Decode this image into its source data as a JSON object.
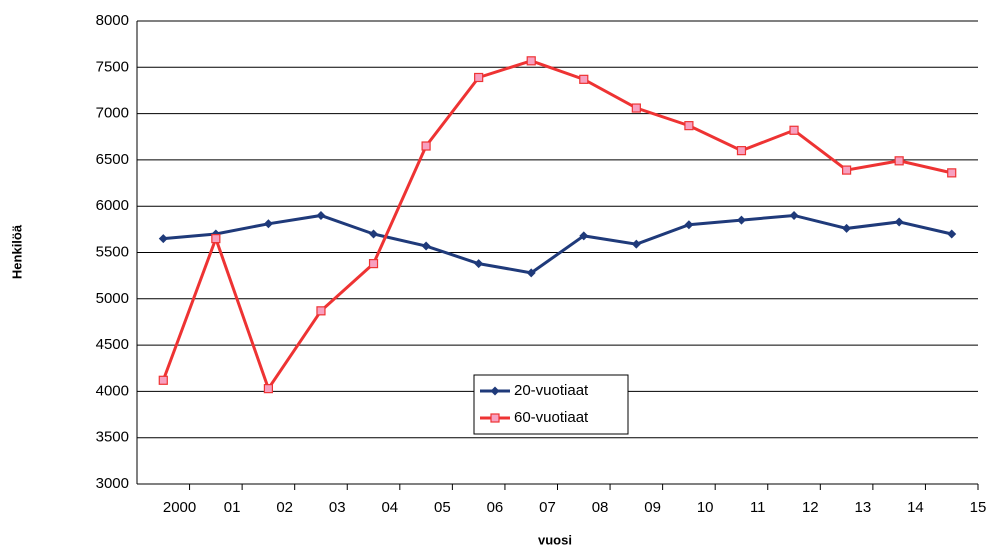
{
  "chart_data": {
    "type": "line",
    "x_label": "vuosi",
    "y_label": "Henkilöä",
    "categories": [
      "2000",
      "01",
      "02",
      "03",
      "04",
      "05",
      "06",
      "07",
      "08",
      "09",
      "10",
      "11",
      "12",
      "13",
      "14",
      "15"
    ],
    "series": [
      {
        "name": "20-vuotiaat",
        "color": "#1f3a7a",
        "marker": "diamond",
        "values": [
          5650,
          5700,
          5810,
          5900,
          5700,
          5570,
          5380,
          5280,
          5680,
          5590,
          5800,
          5850,
          5900,
          5760,
          5830,
          5700
        ]
      },
      {
        "name": "60-vuotiaat",
        "color": "#ee3333",
        "marker": "square",
        "values": [
          4120,
          5650,
          4030,
          4870,
          5380,
          6650,
          7390,
          7570,
          7370,
          7060,
          6870,
          6600,
          6820,
          6390,
          6490,
          6360
        ]
      }
    ],
    "ylim": [
      3000,
      8000
    ],
    "yticks": [
      3000,
      3500,
      4000,
      4500,
      5000,
      5500,
      6000,
      6500,
      7000,
      7500,
      8000
    ],
    "grid": true
  }
}
